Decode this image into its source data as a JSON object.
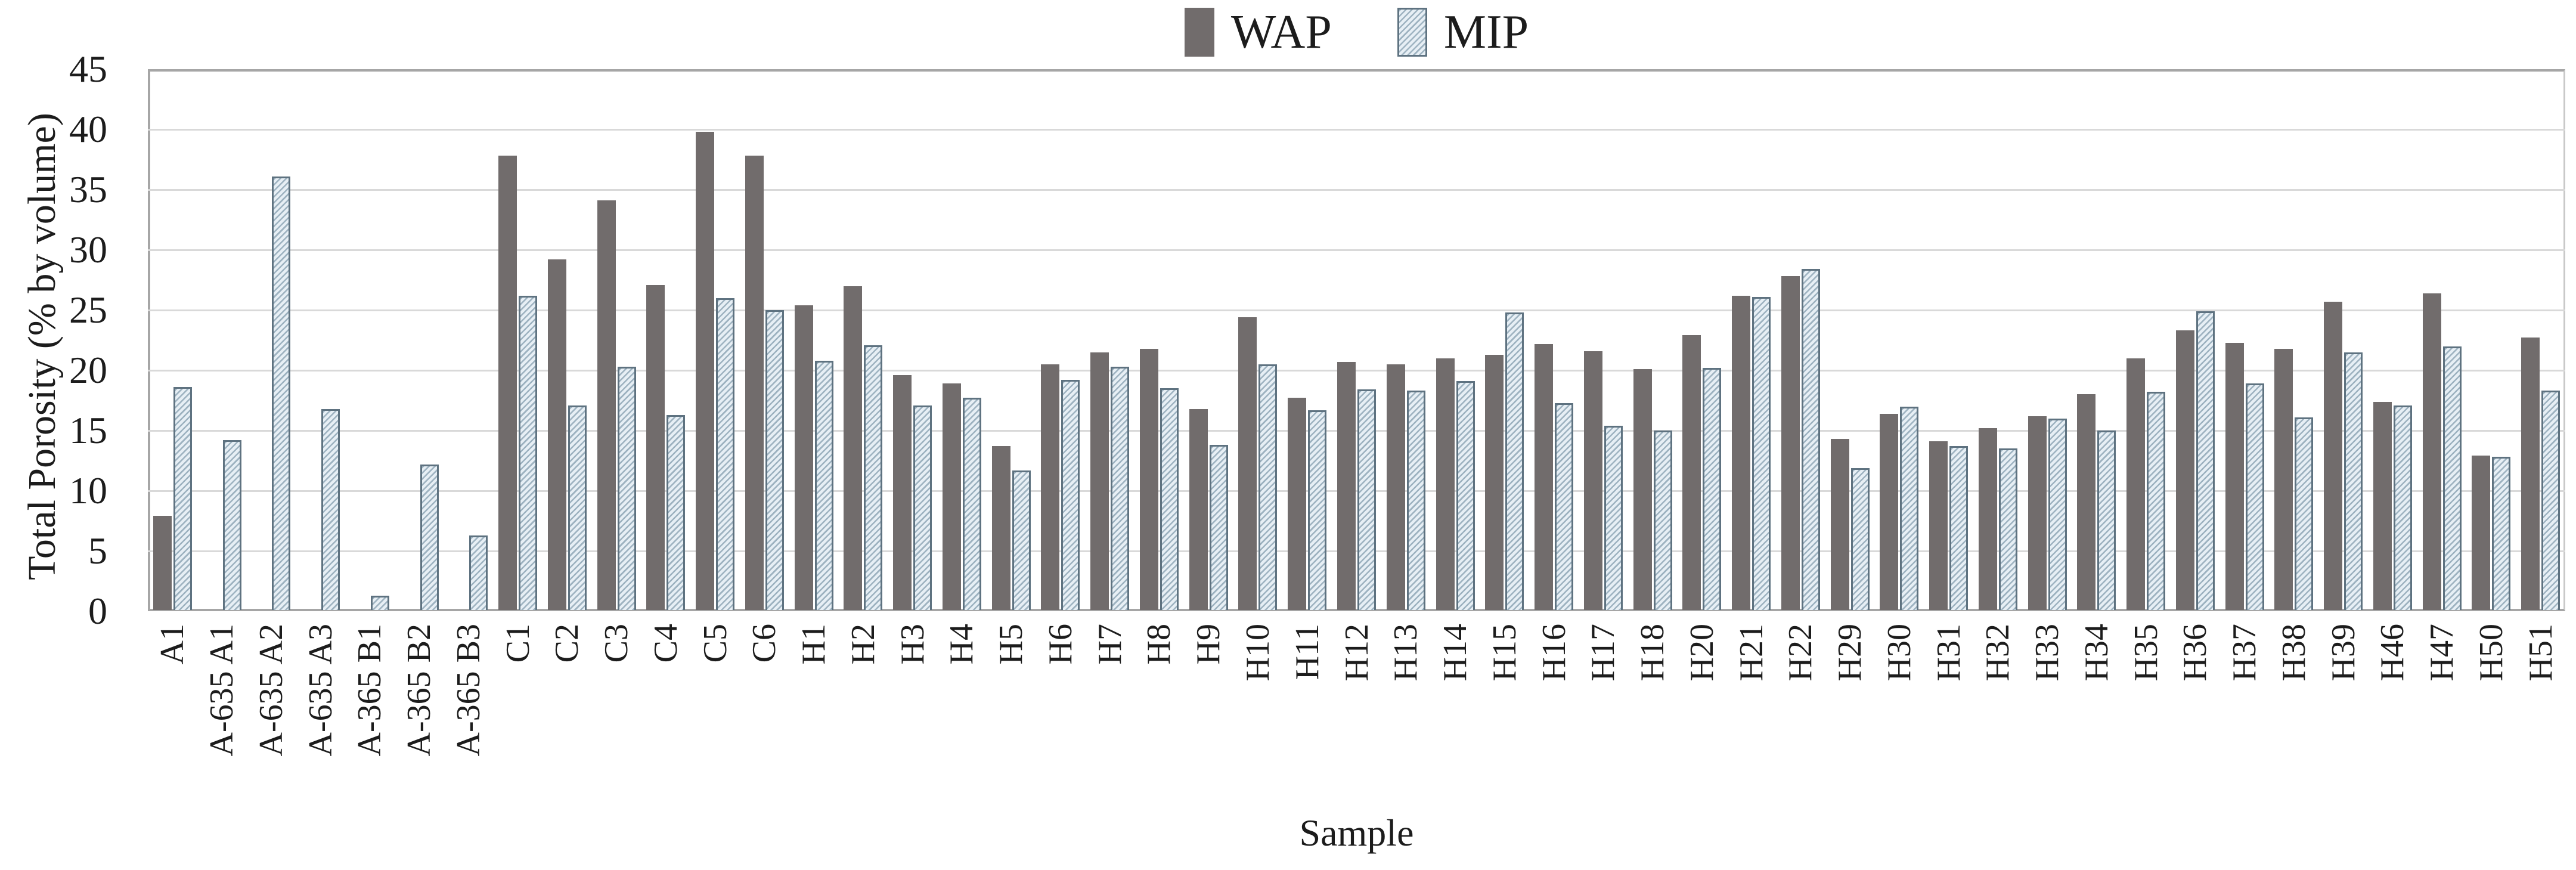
{
  "chart_data": {
    "type": "bar",
    "title": "",
    "xlabel": "Sample",
    "ylabel": "Total Porosity (% by volume)",
    "ylim": [
      0,
      45
    ],
    "yticks": [
      0,
      5,
      10,
      15,
      20,
      25,
      30,
      35,
      40,
      45
    ],
    "grid": true,
    "legend_position": "top-center",
    "categories": [
      "A1",
      "A-635 A1",
      "A-635 A2",
      "A-635 A3",
      "A-365 B1",
      "A-365 B2",
      "A-365 B3",
      "C1",
      "C2",
      "C3",
      "C4",
      "C5",
      "C6",
      "H1",
      "H2",
      "H3",
      "H4",
      "H5",
      "H6",
      "H7",
      "H8",
      "H9",
      "H10",
      "H11",
      "H12",
      "H13",
      "H14",
      "H15",
      "H16",
      "H17",
      "H18",
      "H20",
      "H21",
      "H22",
      "H29",
      "H30",
      "H31",
      "H32",
      "H33",
      "H34",
      "H35",
      "H36",
      "H37",
      "H38",
      "H39",
      "H46",
      "H47",
      "H50",
      "H51"
    ],
    "series": [
      {
        "name": "WAP",
        "style": "solid",
        "values": [
          7.9,
          null,
          null,
          null,
          null,
          null,
          null,
          37.8,
          29.2,
          34.1,
          27.1,
          39.8,
          37.8,
          25.4,
          27.0,
          19.6,
          18.9,
          13.7,
          20.5,
          21.5,
          21.8,
          16.8,
          24.4,
          17.7,
          20.7,
          20.5,
          21.0,
          21.3,
          22.2,
          21.6,
          20.1,
          22.9,
          26.2,
          27.8,
          14.3,
          16.4,
          14.1,
          15.2,
          16.2,
          18.0,
          21.0,
          23.3,
          22.3,
          21.8,
          25.7,
          17.4,
          26.4,
          12.9,
          22.7
        ]
      },
      {
        "name": "MIP",
        "style": "diagonal-hatch",
        "values": [
          18.6,
          14.2,
          36.1,
          16.8,
          1.3,
          12.2,
          6.3,
          26.2,
          17.1,
          20.3,
          16.3,
          26.0,
          25.0,
          20.8,
          22.1,
          17.1,
          17.7,
          11.7,
          19.2,
          20.3,
          18.5,
          13.8,
          20.5,
          16.7,
          18.4,
          18.3,
          19.1,
          24.8,
          17.3,
          15.4,
          15.0,
          20.2,
          26.1,
          28.4,
          11.9,
          17.0,
          13.7,
          13.5,
          16.0,
          15.0,
          18.2,
          24.9,
          18.9,
          16.1,
          21.5,
          17.1,
          22.0,
          12.8,
          18.3
        ]
      }
    ]
  },
  "colors": {
    "wap_fill": "#716c6c",
    "mip_fill": "#e7eff5",
    "mip_hatch": "#9db2c0",
    "mip_border": "#5e7280",
    "gridline": "#d9d9d9",
    "axis": "#a6a6a6",
    "text": "#1c1c1c",
    "background": "#ffffff"
  }
}
